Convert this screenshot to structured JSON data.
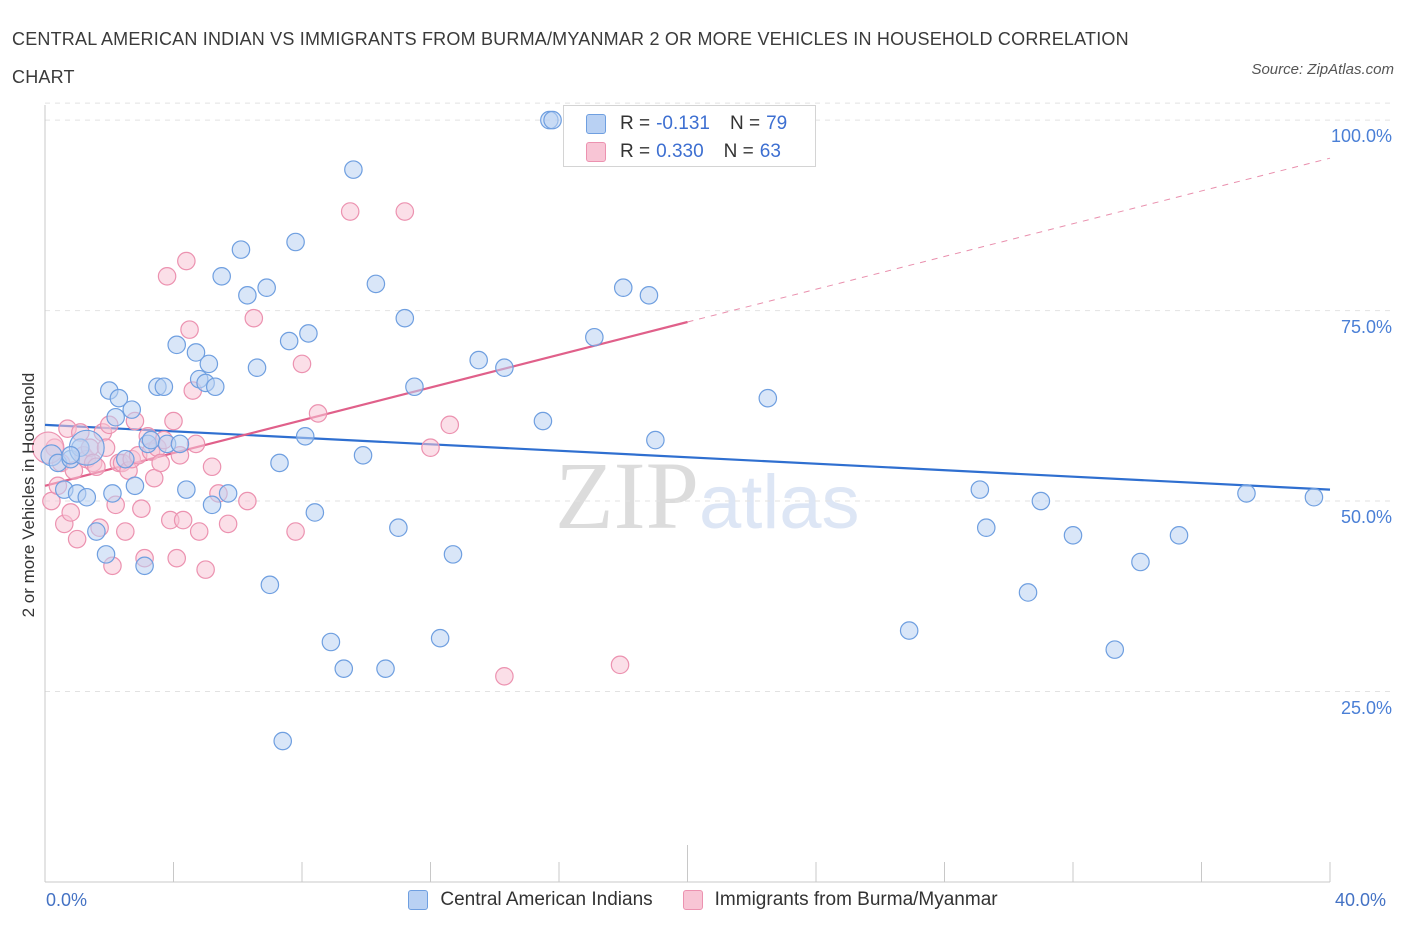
{
  "header": {
    "title": "CENTRAL AMERICAN INDIAN VS IMMIGRANTS FROM BURMA/MYANMAR 2 OR MORE VEHICLES IN HOUSEHOLD CORRELATION CHART",
    "source": "Source: ZipAtlas.com"
  },
  "legend_top": {
    "rows": [
      {
        "r_label": "R =",
        "r_value": "-0.131",
        "n_label": "N =",
        "n_value": "79"
      },
      {
        "r_label": "R =",
        "r_value": "0.330",
        "n_label": "N =",
        "n_value": "63"
      }
    ]
  },
  "watermark": {
    "zip": "ZIP",
    "atlas": "atlas"
  },
  "chart_data": {
    "type": "scatter",
    "title": "CENTRAL AMERICAN INDIAN VS IMMIGRANTS FROM BURMA/MYANMAR 2 OR MORE VEHICLES IN HOUSEHOLD CORRELATION CHART",
    "xlabel": "",
    "ylabel": "2 or more Vehicles in Household",
    "xlim": [
      0,
      40
    ],
    "ylim": [
      0,
      105
    ],
    "x_tick_labels": [
      "0.0%",
      "40.0%"
    ],
    "y_ticks": [
      25,
      50,
      75,
      100
    ],
    "y_tick_labels": [
      "25.0%",
      "50.0%",
      "75.0%",
      "100.0%"
    ],
    "grid": true,
    "legend_position": "bottom",
    "colors": {
      "blue_fill": "#b9d1f3",
      "blue_edge": "#6f9fe0",
      "blue_line": "#2f6fd0",
      "pink_fill": "#f8c5d5",
      "pink_edge": "#ec92b0",
      "pink_line": "#e0608a"
    },
    "series": [
      {
        "name": "Central American Indians",
        "r": -0.131,
        "n": 79,
        "trend": {
          "x": [
            0,
            40
          ],
          "y": [
            60,
            51.5
          ]
        },
        "x": [
          0.2,
          0.4,
          0.6,
          0.8,
          1.0,
          1.1,
          1.3,
          1.6,
          1.9,
          2.0,
          2.2,
          2.3,
          2.5,
          2.7,
          2.8,
          3.1,
          3.2,
          3.3,
          3.5,
          3.7,
          3.8,
          4.1,
          4.2,
          4.4,
          4.7,
          4.8,
          5.0,
          5.1,
          5.2,
          5.5,
          5.7,
          6.1,
          6.3,
          6.6,
          6.9,
          7.0,
          7.3,
          7.4,
          7.6,
          7.8,
          8.1,
          8.2,
          8.9,
          9.3,
          9.6,
          9.9,
          10.3,
          10.6,
          11.0,
          11.2,
          11.5,
          12.3,
          12.7,
          13.5,
          14.3,
          15.5,
          15.7,
          17.1,
          18.0,
          18.8,
          19.0,
          22.5,
          26.9,
          29.1,
          29.3,
          30.6,
          31.0,
          32.0,
          33.3,
          34.1,
          35.3,
          37.4,
          39.5,
          15.8,
          8.4,
          5.3,
          1.3,
          0.8,
          2.1
        ],
        "y": [
          56.0,
          55.0,
          51.5,
          55.5,
          51.0,
          57.0,
          50.5,
          46.0,
          43.0,
          64.5,
          61.0,
          63.5,
          55.5,
          62.0,
          52.0,
          41.5,
          57.5,
          58.0,
          65.0,
          65.0,
          57.5,
          70.5,
          57.5,
          51.5,
          69.5,
          66.0,
          65.5,
          68.0,
          49.5,
          79.5,
          51.0,
          83.0,
          77.0,
          67.5,
          78.0,
          39.0,
          55.0,
          18.5,
          71.0,
          84.0,
          58.5,
          72.0,
          31.5,
          28.0,
          93.5,
          56.0,
          78.5,
          28.0,
          46.5,
          74.0,
          65.0,
          32.0,
          43.0,
          68.5,
          67.5,
          60.5,
          100.0,
          71.5,
          78.0,
          77.0,
          58.0,
          63.5,
          33.0,
          51.5,
          46.5,
          38.0,
          50.0,
          45.5,
          30.5,
          42.0,
          45.5,
          51.0,
          50.5,
          100.0,
          48.5,
          65.0,
          57.0,
          56.0,
          51.0
        ],
        "sizes": [
          12,
          10,
          10,
          10,
          10,
          10,
          10,
          10,
          10,
          10,
          10,
          10,
          10,
          10,
          10,
          10,
          10,
          10,
          10,
          10,
          10,
          10,
          10,
          10,
          10,
          10,
          10,
          10,
          10,
          10,
          10,
          10,
          10,
          10,
          10,
          10,
          10,
          10,
          10,
          10,
          10,
          10,
          10,
          10,
          10,
          10,
          10,
          10,
          10,
          10,
          10,
          10,
          10,
          10,
          10,
          10,
          10,
          10,
          10,
          10,
          10,
          10,
          10,
          10,
          10,
          10,
          10,
          10,
          10,
          10,
          10,
          10,
          10,
          10,
          10,
          10,
          20,
          10,
          10
        ]
      },
      {
        "name": "Immigrants from Burma/Myanmar",
        "r": 0.33,
        "n": 63,
        "trend": {
          "x": [
            0,
            20
          ],
          "y": [
            52,
            73.5
          ]
        },
        "trend_extension": {
          "x": [
            20,
            40
          ],
          "y": [
            73.5,
            95
          ]
        },
        "x": [
          0.2,
          0.3,
          0.4,
          0.5,
          0.6,
          0.7,
          0.8,
          0.9,
          1.0,
          1.1,
          1.2,
          1.3,
          1.4,
          1.5,
          1.6,
          1.7,
          1.8,
          1.9,
          2.0,
          2.1,
          2.2,
          2.3,
          2.4,
          2.5,
          2.6,
          2.7,
          2.8,
          2.9,
          3.0,
          3.1,
          3.2,
          3.3,
          3.4,
          3.5,
          3.6,
          3.7,
          3.8,
          3.9,
          4.0,
          4.1,
          4.2,
          4.3,
          4.4,
          4.5,
          4.6,
          4.7,
          4.8,
          5.0,
          5.2,
          5.4,
          5.7,
          6.3,
          6.5,
          7.8,
          8.0,
          8.5,
          9.5,
          11.2,
          12.0,
          12.6,
          14.3,
          17.9,
          0.1
        ],
        "y": [
          50.0,
          57.0,
          52.0,
          55.0,
          47.0,
          59.5,
          48.5,
          54.0,
          45.0,
          59.0,
          56.0,
          55.5,
          57.0,
          55.0,
          54.5,
          46.5,
          59.0,
          57.0,
          60.0,
          41.5,
          49.5,
          55.0,
          55.0,
          46.0,
          54.0,
          55.5,
          60.5,
          56.0,
          49.0,
          42.5,
          58.5,
          56.5,
          53.0,
          57.0,
          55.0,
          58.0,
          79.5,
          47.5,
          60.5,
          42.5,
          56.0,
          47.5,
          81.5,
          72.5,
          64.5,
          57.5,
          46.0,
          41.0,
          54.5,
          51.0,
          47.0,
          50.0,
          74.0,
          46.0,
          68.0,
          61.5,
          88.0,
          88.0,
          57.0,
          60.0,
          27.0,
          28.5,
          57.0
        ],
        "sizes": [
          10,
          10,
          10,
          10,
          10,
          10,
          10,
          10,
          10,
          10,
          10,
          10,
          10,
          10,
          10,
          10,
          10,
          10,
          10,
          10,
          10,
          10,
          10,
          10,
          10,
          10,
          10,
          10,
          10,
          10,
          10,
          10,
          10,
          10,
          10,
          10,
          10,
          10,
          10,
          10,
          10,
          10,
          10,
          10,
          10,
          10,
          10,
          10,
          10,
          10,
          10,
          10,
          10,
          10,
          10,
          10,
          10,
          10,
          10,
          10,
          10,
          10,
          18
        ]
      }
    ]
  }
}
